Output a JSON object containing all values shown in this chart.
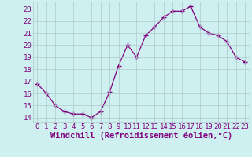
{
  "x": [
    0,
    1,
    2,
    3,
    4,
    5,
    6,
    7,
    8,
    9,
    10,
    11,
    12,
    13,
    14,
    15,
    16,
    17,
    18,
    19,
    20,
    21,
    22,
    23
  ],
  "y": [
    16.8,
    16.0,
    15.0,
    14.5,
    14.3,
    14.3,
    14.0,
    14.5,
    16.1,
    18.3,
    20.0,
    19.0,
    20.8,
    21.5,
    22.3,
    22.8,
    22.8,
    23.2,
    21.5,
    21.0,
    20.8,
    20.3,
    19.0,
    18.6
  ],
  "line_color": "#800080",
  "marker": "+",
  "marker_size": 4,
  "bg_color": "#cff0f0",
  "grid_color": "#b0c8c8",
  "xlabel": "Windchill (Refroidissement éolien,°C)",
  "xlabel_color": "#800080",
  "ylabel_ticks": [
    14,
    15,
    16,
    17,
    18,
    19,
    20,
    21,
    22,
    23
  ],
  "xtick_labels": [
    "0",
    "1",
    "2",
    "3",
    "4",
    "5",
    "6",
    "7",
    "8",
    "9",
    "10",
    "11",
    "12",
    "13",
    "14",
    "15",
    "16",
    "17",
    "18",
    "19",
    "20",
    "21",
    "22",
    "23"
  ],
  "ylim": [
    13.6,
    23.6
  ],
  "xlim": [
    -0.5,
    23.5
  ],
  "tick_color": "#800080",
  "tick_fontsize": 6.5,
  "xlabel_fontsize": 7.5
}
